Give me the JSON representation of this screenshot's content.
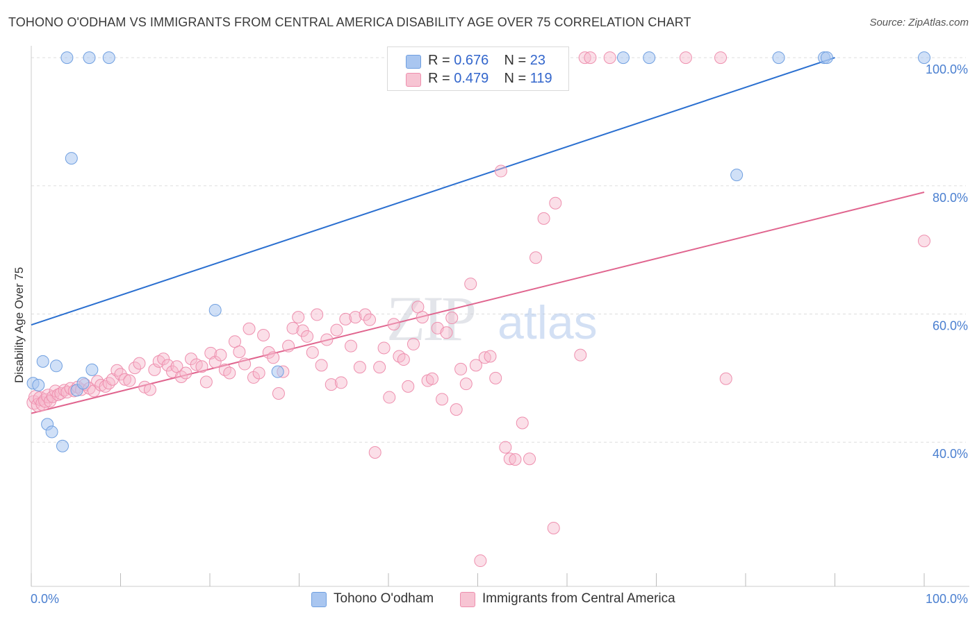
{
  "title": "TOHONO O'ODHAM VS IMMIGRANTS FROM CENTRAL AMERICA DISABILITY AGE OVER 75 CORRELATION CHART",
  "source": "Source: ZipAtlas.com",
  "watermark": {
    "zip": "ZIP",
    "atlas": "atlas"
  },
  "legend": {
    "series1": {
      "r_label": "R =",
      "r_value": "0.676",
      "n_label": "N =",
      "n_value": "23"
    },
    "series2": {
      "r_label": "R =",
      "r_value": "0.479",
      "n_label": "N =",
      "n_value": "119"
    }
  },
  "bottom_legend": {
    "series1": "Tohono O'odham",
    "series2": "Immigrants from Central America"
  },
  "colors": {
    "blue_fill": "#a9c6f0",
    "blue_stroke": "#6f9fe0",
    "blue_line": "#2a6fd0",
    "pink_fill": "#f7b9cc",
    "pink_stroke": "#ee8fae",
    "pink_line": "#e0648e",
    "tick_text": "#4a7fd0",
    "grid": "#dddddd"
  },
  "chart_data": {
    "type": "scatter",
    "title": "TOHONO O'ODHAM VS IMMIGRANTS FROM CENTRAL AMERICA DISABILITY AGE OVER 75 CORRELATION CHART",
    "xlabel": "",
    "ylabel": "Disability Age Over 75",
    "xlim": [
      0,
      100
    ],
    "ylim": [
      17.5,
      102.5
    ],
    "x_tick_labels": [
      "0.0%",
      "100.0%"
    ],
    "y_ticks": [
      40,
      60,
      80,
      100
    ],
    "y_tick_labels": [
      "40.0%",
      "60.0%",
      "80.0%",
      "100.0%"
    ],
    "grid": true,
    "series": [
      {
        "name": "Tohono O'odham",
        "r": 0.676,
        "n": 23,
        "trend": {
          "x": [
            0,
            90
          ],
          "y": [
            58.3,
            100.0
          ]
        },
        "points": [
          {
            "x": 0.2,
            "y": 49.2
          },
          {
            "x": 0.8,
            "y": 48.9
          },
          {
            "x": 1.3,
            "y": 52.6
          },
          {
            "x": 1.8,
            "y": 42.8
          },
          {
            "x": 2.3,
            "y": 41.6
          },
          {
            "x": 2.8,
            "y": 51.9
          },
          {
            "x": 3.5,
            "y": 39.4
          },
          {
            "x": 4.0,
            "y": 100.0
          },
          {
            "x": 4.5,
            "y": 84.3
          },
          {
            "x": 5.1,
            "y": 48.1
          },
          {
            "x": 5.8,
            "y": 49.2
          },
          {
            "x": 6.5,
            "y": 100.0
          },
          {
            "x": 6.8,
            "y": 51.3
          },
          {
            "x": 8.7,
            "y": 100.0
          },
          {
            "x": 20.6,
            "y": 60.6
          },
          {
            "x": 27.6,
            "y": 51.0
          },
          {
            "x": 66.3,
            "y": 100.0
          },
          {
            "x": 69.2,
            "y": 100.0
          },
          {
            "x": 79.0,
            "y": 81.7
          },
          {
            "x": 83.7,
            "y": 100.0
          },
          {
            "x": 88.8,
            "y": 100.0
          },
          {
            "x": 89.1,
            "y": 100.0
          },
          {
            "x": 100.0,
            "y": 100.0
          }
        ]
      },
      {
        "name": "Immigrants from Central America",
        "r": 0.479,
        "n": 119,
        "trend": {
          "x": [
            0,
            100
          ],
          "y": [
            44.5,
            79.0
          ]
        },
        "points": [
          {
            "x": 0.3,
            "y": 46.2
          },
          {
            "x": 0.5,
            "y": 47.0
          },
          {
            "x": 0.8,
            "y": 45.8
          },
          {
            "x": 1.0,
            "y": 46.8
          },
          {
            "x": 1.3,
            "y": 46.0
          },
          {
            "x": 1.6,
            "y": 46.5
          },
          {
            "x": 1.9,
            "y": 47.2
          },
          {
            "x": 2.1,
            "y": 46.4
          },
          {
            "x": 2.4,
            "y": 47.1
          },
          {
            "x": 2.7,
            "y": 48.0
          },
          {
            "x": 3.0,
            "y": 47.4
          },
          {
            "x": 3.3,
            "y": 47.6
          },
          {
            "x": 3.7,
            "y": 48.1
          },
          {
            "x": 4.0,
            "y": 47.8
          },
          {
            "x": 4.4,
            "y": 48.4
          },
          {
            "x": 4.8,
            "y": 48.0
          },
          {
            "x": 5.2,
            "y": 48.6
          },
          {
            "x": 5.6,
            "y": 48.2
          },
          {
            "x": 6.0,
            "y": 49.0
          },
          {
            "x": 6.5,
            "y": 48.4
          },
          {
            "x": 7.0,
            "y": 48.0
          },
          {
            "x": 7.4,
            "y": 49.5
          },
          {
            "x": 7.8,
            "y": 48.9
          },
          {
            "x": 8.3,
            "y": 48.7
          },
          {
            "x": 8.7,
            "y": 49.2
          },
          {
            "x": 9.1,
            "y": 49.8
          },
          {
            "x": 9.6,
            "y": 51.2
          },
          {
            "x": 10.0,
            "y": 50.6
          },
          {
            "x": 10.5,
            "y": 49.8
          },
          {
            "x": 11.0,
            "y": 49.6
          },
          {
            "x": 11.6,
            "y": 51.6
          },
          {
            "x": 12.1,
            "y": 52.3
          },
          {
            "x": 12.7,
            "y": 48.6
          },
          {
            "x": 13.3,
            "y": 48.2
          },
          {
            "x": 13.8,
            "y": 51.3
          },
          {
            "x": 14.3,
            "y": 52.6
          },
          {
            "x": 14.8,
            "y": 53.0
          },
          {
            "x": 15.3,
            "y": 52.0
          },
          {
            "x": 15.8,
            "y": 51.0
          },
          {
            "x": 16.3,
            "y": 51.8
          },
          {
            "x": 16.8,
            "y": 50.2
          },
          {
            "x": 17.3,
            "y": 50.8
          },
          {
            "x": 17.9,
            "y": 53.0
          },
          {
            "x": 18.5,
            "y": 52.1
          },
          {
            "x": 19.1,
            "y": 51.8
          },
          {
            "x": 19.6,
            "y": 49.4
          },
          {
            "x": 20.1,
            "y": 53.9
          },
          {
            "x": 20.6,
            "y": 52.5
          },
          {
            "x": 21.2,
            "y": 53.6
          },
          {
            "x": 21.7,
            "y": 51.3
          },
          {
            "x": 22.2,
            "y": 50.8
          },
          {
            "x": 22.8,
            "y": 55.7
          },
          {
            "x": 23.3,
            "y": 54.1
          },
          {
            "x": 23.9,
            "y": 52.2
          },
          {
            "x": 24.4,
            "y": 57.7
          },
          {
            "x": 24.9,
            "y": 50.1
          },
          {
            "x": 25.5,
            "y": 50.8
          },
          {
            "x": 26.0,
            "y": 56.7
          },
          {
            "x": 26.6,
            "y": 54.0
          },
          {
            "x": 27.1,
            "y": 53.2
          },
          {
            "x": 27.7,
            "y": 47.6
          },
          {
            "x": 28.2,
            "y": 51.0
          },
          {
            "x": 28.8,
            "y": 55.0
          },
          {
            "x": 29.3,
            "y": 57.8
          },
          {
            "x": 29.9,
            "y": 59.5
          },
          {
            "x": 30.4,
            "y": 57.4
          },
          {
            "x": 30.9,
            "y": 56.5
          },
          {
            "x": 31.5,
            "y": 54.0
          },
          {
            "x": 32.0,
            "y": 59.9
          },
          {
            "x": 32.5,
            "y": 52.0
          },
          {
            "x": 33.1,
            "y": 56.0
          },
          {
            "x": 33.6,
            "y": 49.0
          },
          {
            "x": 34.2,
            "y": 57.5
          },
          {
            "x": 34.7,
            "y": 49.3
          },
          {
            "x": 35.2,
            "y": 59.2
          },
          {
            "x": 35.8,
            "y": 55.0
          },
          {
            "x": 36.3,
            "y": 59.5
          },
          {
            "x": 36.8,
            "y": 51.7
          },
          {
            "x": 37.4,
            "y": 59.9
          },
          {
            "x": 37.9,
            "y": 59.1
          },
          {
            "x": 38.5,
            "y": 38.4
          },
          {
            "x": 39.0,
            "y": 51.7
          },
          {
            "x": 39.5,
            "y": 54.7
          },
          {
            "x": 40.1,
            "y": 47.0
          },
          {
            "x": 40.6,
            "y": 58.4
          },
          {
            "x": 41.2,
            "y": 53.4
          },
          {
            "x": 41.7,
            "y": 52.9
          },
          {
            "x": 42.2,
            "y": 48.7
          },
          {
            "x": 42.8,
            "y": 55.3
          },
          {
            "x": 43.3,
            "y": 61.1
          },
          {
            "x": 43.8,
            "y": 59.5
          },
          {
            "x": 44.4,
            "y": 49.6
          },
          {
            "x": 44.9,
            "y": 49.9
          },
          {
            "x": 45.5,
            "y": 57.8
          },
          {
            "x": 46.0,
            "y": 46.7
          },
          {
            "x": 46.5,
            "y": 57.1
          },
          {
            "x": 47.1,
            "y": 59.4
          },
          {
            "x": 47.6,
            "y": 45.1
          },
          {
            "x": 48.1,
            "y": 51.4
          },
          {
            "x": 48.7,
            "y": 49.1
          },
          {
            "x": 49.2,
            "y": 64.7
          },
          {
            "x": 49.8,
            "y": 52.0
          },
          {
            "x": 50.3,
            "y": 21.5
          },
          {
            "x": 50.8,
            "y": 53.2
          },
          {
            "x": 51.4,
            "y": 53.4
          },
          {
            "x": 52.0,
            "y": 50.0
          },
          {
            "x": 52.6,
            "y": 82.3
          },
          {
            "x": 53.1,
            "y": 39.2
          },
          {
            "x": 53.6,
            "y": 37.4
          },
          {
            "x": 54.2,
            "y": 37.3
          },
          {
            "x": 55.0,
            "y": 43.0
          },
          {
            "x": 55.8,
            "y": 37.4
          },
          {
            "x": 56.5,
            "y": 68.8
          },
          {
            "x": 57.4,
            "y": 74.9
          },
          {
            "x": 58.5,
            "y": 26.6
          },
          {
            "x": 58.7,
            "y": 77.3
          },
          {
            "x": 61.5,
            "y": 53.6
          },
          {
            "x": 77.8,
            "y": 49.9
          },
          {
            "x": 100.0,
            "y": 71.4
          }
        ],
        "top_points": [
          {
            "x": 59.5,
            "y": 100.0
          },
          {
            "x": 62.0,
            "y": 100.0
          },
          {
            "x": 62.6,
            "y": 100.0
          },
          {
            "x": 64.8,
            "y": 100.0
          },
          {
            "x": 73.3,
            "y": 100.0
          },
          {
            "x": 77.2,
            "y": 100.0
          }
        ]
      }
    ]
  }
}
